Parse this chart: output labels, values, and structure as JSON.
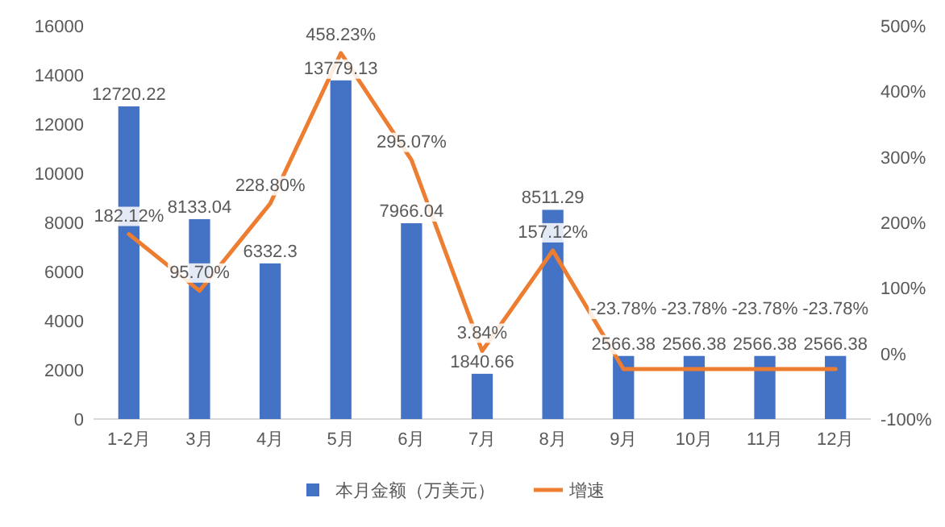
{
  "chart_data": {
    "type": "bar",
    "categories": [
      "1-2月",
      "3月",
      "4月",
      "5月",
      "6月",
      "7月",
      "8月",
      "9月",
      "10月",
      "11月",
      "12月"
    ],
    "series": [
      {
        "name": "本月金额（万美元）",
        "color": "#4472c4",
        "values": [
          12720.22,
          8133.04,
          6332.3,
          13779.13,
          7966.04,
          1840.66,
          8511.29,
          2566.38,
          2566.38,
          2566.38,
          2566.38
        ],
        "value_labels": [
          "12720.22",
          "8133.04",
          "6332.3",
          "13779.13",
          "7966.04",
          "1840.66",
          "8511.29",
          "2566.38",
          "2566.38",
          "2566.38",
          "2566.38"
        ]
      },
      {
        "name": "增速",
        "type": "line",
        "axis": "y2",
        "color": "#ed7d31",
        "values": [
          182.12,
          95.7,
          228.8,
          458.23,
          295.07,
          3.84,
          157.12,
          -23.78,
          -23.78,
          -23.78,
          -23.78
        ],
        "value_labels": [
          "182.12%",
          "95.70%",
          "228.80%",
          "458.23%",
          "295.07%",
          "3.84%",
          "157.12%",
          "-23.78%",
          "-23.78%",
          "-23.78%",
          "-23.78%"
        ]
      }
    ],
    "ylim": [
      0,
      16000
    ],
    "yticks": [
      0,
      2000,
      4000,
      6000,
      8000,
      10000,
      12000,
      14000,
      16000
    ],
    "y2lim": [
      -100,
      500
    ],
    "y2ticks": [
      {
        "value": -100,
        "label": "-100%"
      },
      {
        "value": 0,
        "label": "0%"
      },
      {
        "value": 100,
        "label": "100%"
      },
      {
        "value": 200,
        "label": "200%"
      },
      {
        "value": 300,
        "label": "300%"
      },
      {
        "value": 400,
        "label": "400%"
      },
      {
        "value": 500,
        "label": "500%"
      }
    ],
    "grid": false,
    "legend": "bottom",
    "marker": "none",
    "line_style": "solid"
  }
}
